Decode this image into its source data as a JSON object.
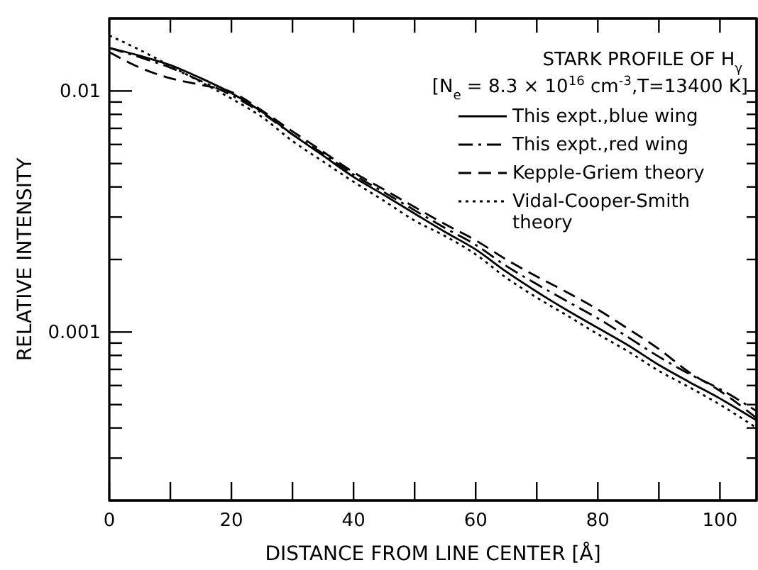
{
  "chart_data": {
    "type": "line",
    "xlabel": "DISTANCE FROM LINE CENTER [Å]",
    "ylabel": "RELATIVE INTENSITY",
    "legend_title": "STARK PROFILE OF H$_{γ}$",
    "annotations": [
      "[N$_{e}$ = 8.3 × 10$^{16}$ cm$^{-3}$,T=13400 K]"
    ],
    "x": [
      0,
      5,
      10,
      15,
      20,
      25,
      30,
      35,
      40,
      45,
      50,
      55,
      60,
      65,
      70,
      75,
      80,
      85,
      90,
      95,
      100,
      106
    ],
    "xlim": [
      0,
      106
    ],
    "xticks": [
      0,
      {
        "value": 10,
        "label": null
      },
      20,
      {
        "value": 30,
        "label": null
      },
      40,
      {
        "value": 50,
        "label": null
      },
      60,
      {
        "value": 70,
        "label": null
      },
      80,
      {
        "value": 90,
        "label": null
      },
      100
    ],
    "log": true,
    "ylim": [
      0.0002,
      0.02
    ],
    "yticks": [
      {
        "value": 0.0003,
        "label": null
      },
      {
        "value": 0.0004,
        "label": null
      },
      {
        "value": 0.0005,
        "label": null
      },
      {
        "value": 0.0006,
        "label": null
      },
      {
        "value": 0.0007,
        "label": null
      },
      {
        "value": 0.0008,
        "label": null
      },
      {
        "value": 0.0009,
        "label": null
      },
      0.001,
      {
        "value": 0.002,
        "label": null
      },
      {
        "value": 0.003,
        "label": null
      },
      {
        "value": 0.004,
        "label": null
      },
      {
        "value": 0.005,
        "label": null
      },
      {
        "value": 0.006,
        "label": null
      },
      {
        "value": 0.007,
        "label": null
      },
      {
        "value": 0.008,
        "label": null
      },
      {
        "value": 0.009,
        "label": null
      },
      0.01
    ],
    "grid": false,
    "legend": "top right",
    "marker": "none",
    "series": [
      {
        "name": "This expt.,blue wing",
        "color": "#000000",
        "line_style": "solid",
        "values": [
          0.0151,
          0.014,
          0.0128,
          0.0113,
          0.0098,
          0.0082,
          0.0066,
          0.0054,
          0.0044,
          0.0037,
          0.0031,
          0.0026,
          0.0022,
          0.00178,
          0.00147,
          0.00123,
          0.00104,
          0.00088,
          0.00073,
          0.00062,
          0.00053,
          0.00043
        ]
      },
      {
        "name": "This expt.,red wing",
        "color": "#000000",
        "line_style": "dashdot",
        "values": [
          0.0151,
          0.0138,
          0.0125,
          0.011,
          0.0096,
          0.0081,
          0.0066,
          0.0055,
          0.0045,
          0.0038,
          0.0032,
          0.0027,
          0.0023,
          0.00188,
          0.00158,
          0.00134,
          0.00114,
          0.00095,
          0.00079,
          0.00067,
          0.00058,
          0.00047
        ]
      },
      {
        "name": "Kepple-Griem theory",
        "color": "#000000",
        "line_style": "dashed",
        "values": [
          0.0145,
          0.0125,
          0.0113,
          0.0106,
          0.0099,
          0.0083,
          0.0068,
          0.0056,
          0.0046,
          0.0039,
          0.0033,
          0.0028,
          0.0024,
          0.002,
          0.0017,
          0.00146,
          0.00124,
          0.00103,
          0.00085,
          0.00068,
          0.00057,
          0.00044
        ]
      },
      {
        "name": "Vidal-Cooper-Smith theory",
        "color": "#000000",
        "line_style": "dotted",
        "values": [
          0.017,
          0.0148,
          0.0127,
          0.0109,
          0.0093,
          0.0078,
          0.0062,
          0.0051,
          0.0042,
          0.0035,
          0.0029,
          0.0025,
          0.0021,
          0.00168,
          0.00139,
          0.00117,
          0.00098,
          0.00083,
          0.00069,
          0.00059,
          0.0005,
          0.0004
        ]
      }
    ]
  }
}
